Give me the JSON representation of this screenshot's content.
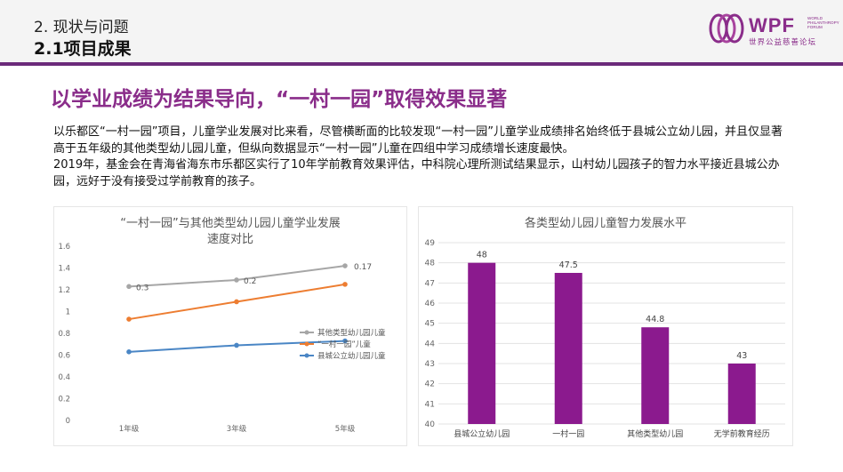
{
  "header": {
    "section": "2. 现状与问题",
    "subsection": "2.1项目成果",
    "logo": {
      "icon": "wpf-rings-icon",
      "mark": "WPF",
      "small_lines": [
        "WORLD",
        "PHILANTHROPY",
        "FORUM"
      ],
      "cn": "世界公益慈善论坛"
    },
    "accent_color": "#6b2a7a"
  },
  "headline": "以学业成绩为结果导向，“一村一园”取得效果显著",
  "paragraphs": [
    "以乐都区“一村一园”项目，儿童学业发展对比来看，尽管横断面的比较发现“一村一园”儿童学业成绩排名始终低于县城公立幼儿园，并且仅显著高于五年级的其他类型幼儿园儿童，但纵向数据显示“一村一园”儿童在四组中学习成绩增长速度最快。",
    "2019年，基金会在青海省海东市乐都区实行了10年学前教育效果评估，中科院心理所测试结果显示，山村幼儿园孩子的智力水平接近县城公办园，远好于没有接受过学前教育的孩子。"
  ],
  "chart_data": [
    {
      "type": "line",
      "title": "“一村一园”与其他类型幼儿园儿童学业发展速度对比",
      "categories": [
        "1年级",
        "3年级",
        "5年级"
      ],
      "ylim": [
        0,
        1.6
      ],
      "yticks": [
        "0",
        "0.2",
        "0.4",
        "0.6",
        "0.8",
        "1",
        "1.2",
        "1.4",
        "1.6"
      ],
      "grid": false,
      "legend": "right",
      "series": [
        {
          "name": "其他类型幼儿园儿童",
          "color": "#a6a6a6",
          "values": [
            1.23,
            1.29,
            1.42
          ],
          "labels": [
            "0.3",
            "0.2",
            "0.17"
          ]
        },
        {
          "name": "“一村一园”儿童",
          "color": "#ed7d31",
          "values": [
            0.93,
            1.09,
            1.25
          ]
        },
        {
          "name": "县城公立幼儿园儿童",
          "color": "#4a86c5",
          "values": [
            0.63,
            0.69,
            0.73
          ]
        }
      ]
    },
    {
      "type": "bar",
      "title": "各类型幼儿园儿童智力发展水平",
      "categories": [
        "县城公立幼儿园",
        "一村一园",
        "其他类型幼儿园",
        "无学前教育经历"
      ],
      "values": [
        48,
        47.5,
        44.8,
        43
      ],
      "value_labels": [
        "48",
        "47.5",
        "44.8",
        "43"
      ],
      "ylim": [
        40,
        49
      ],
      "yticks": [
        "40",
        "41",
        "42",
        "43",
        "44",
        "45",
        "46",
        "47",
        "48",
        "49"
      ],
      "grid": true,
      "color": "#8b1a8e"
    }
  ]
}
